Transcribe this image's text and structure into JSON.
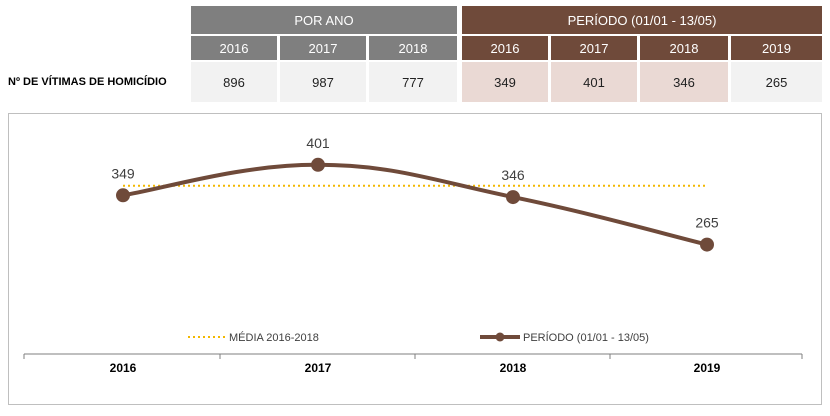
{
  "table": {
    "group_headers": [
      {
        "label": "POR ANO"
      },
      {
        "label": "PERÍODO (01/01 - 13/05)"
      }
    ],
    "row_label": "Nº DE VÍTIMAS DE HOMICÍDIO",
    "por_ano": [
      {
        "year": "2016",
        "value": "896"
      },
      {
        "year": "2017",
        "value": "987"
      },
      {
        "year": "2018",
        "value": "777"
      }
    ],
    "periodo": [
      {
        "year": "2016",
        "value": "349"
      },
      {
        "year": "2017",
        "value": "401"
      },
      {
        "year": "2018",
        "value": "346"
      },
      {
        "year": "2019",
        "value": "265"
      }
    ]
  },
  "chart_data": {
    "type": "line",
    "categories": [
      "2016",
      "2017",
      "2018",
      "2019"
    ],
    "series": [
      {
        "name": "MÉDIA 2016-2018",
        "values": [
          365.3,
          365.3,
          365.3,
          365.3
        ],
        "color": "#f2b700",
        "style": "dotted"
      },
      {
        "name": "PERÍODO (01/01 - 13/05)",
        "values": [
          349,
          401,
          346,
          265
        ],
        "color": "#6f4a3a",
        "style": "solid",
        "data_labels": [
          "349",
          "401",
          "346",
          "265"
        ]
      }
    ],
    "ylim": [
      0,
      520
    ],
    "legend": "bottom",
    "grid": false
  }
}
